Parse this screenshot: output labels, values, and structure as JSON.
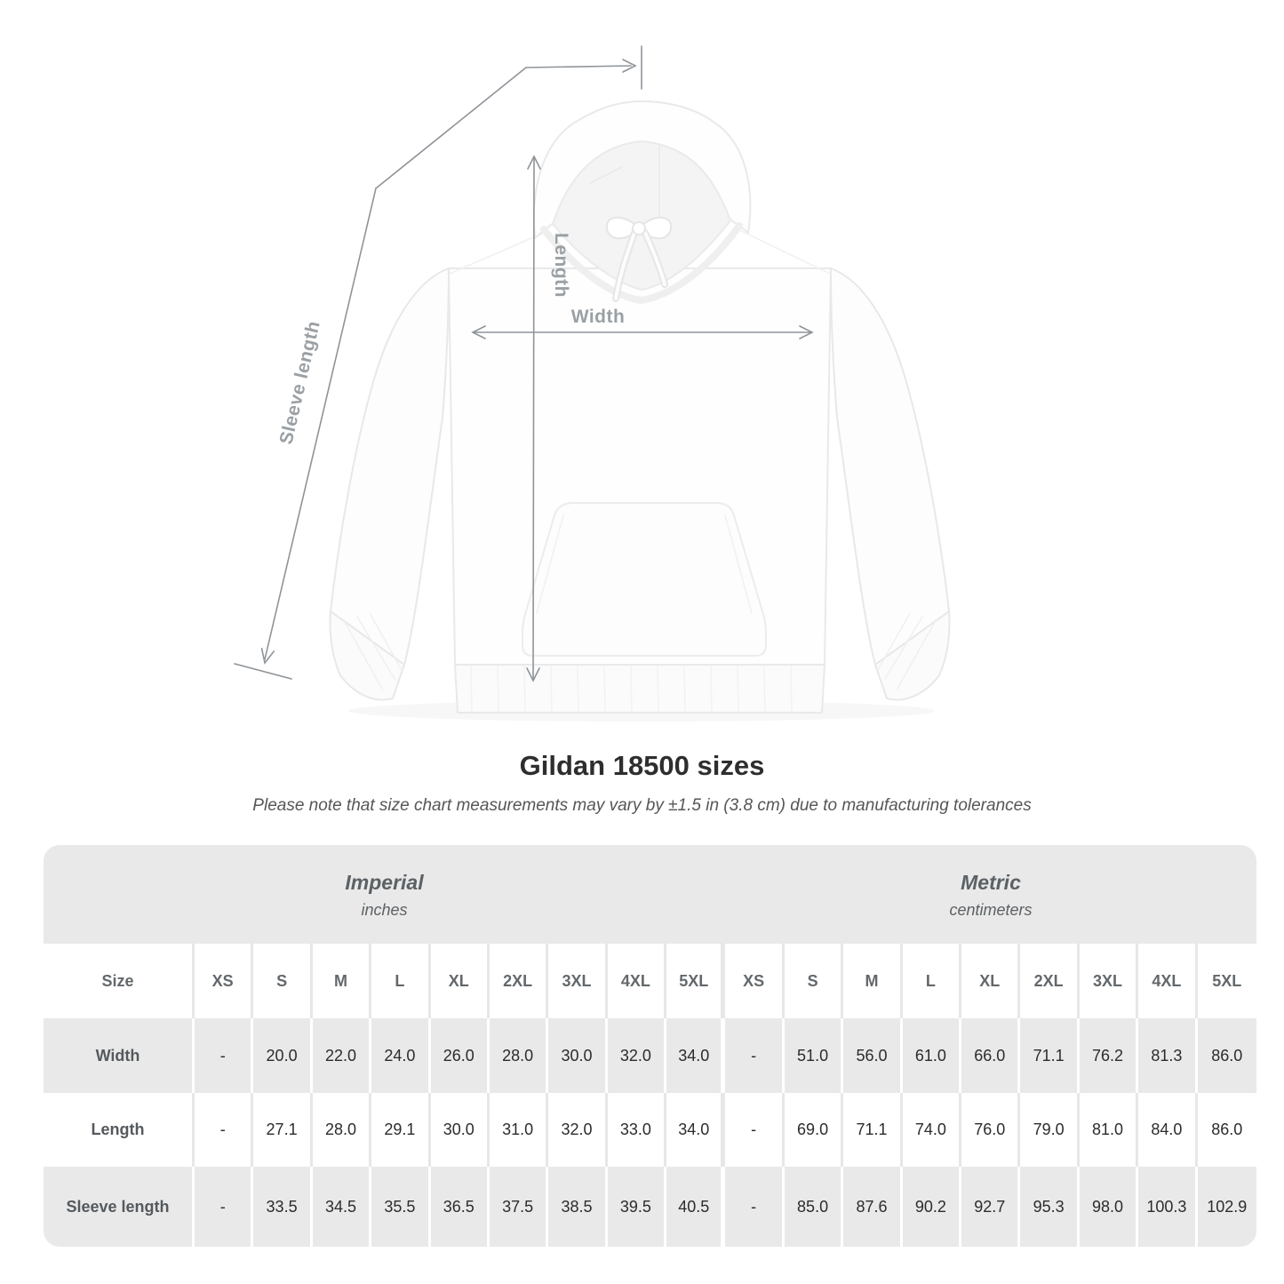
{
  "diagram": {
    "sleeve_label": "Sleeve length",
    "length_label": "Length",
    "width_label": "Width"
  },
  "title": "Gildan 18500 sizes",
  "subtitle": "Please note that size chart measurements may vary by ±1.5 in (3.8 cm) due to manufacturing tolerances",
  "colors": {
    "band_gray": "#e9e9e9",
    "dimension_line": "#8f9499",
    "dimension_label": "#9aa0a4",
    "value_text": "#2c2c2c"
  },
  "chart_data": {
    "type": "table",
    "title": "Gildan 18500 sizes",
    "corner_label": "Size",
    "groups": [
      {
        "label": "Imperial",
        "unit": "inches",
        "sizes": [
          "XS",
          "S",
          "M",
          "L",
          "XL",
          "2XL",
          "3XL",
          "4XL",
          "5XL"
        ]
      },
      {
        "label": "Metric",
        "unit": "centimeters",
        "sizes": [
          "XS",
          "S",
          "M",
          "L",
          "XL",
          "2XL",
          "3XL",
          "4XL",
          "5XL"
        ]
      }
    ],
    "rows": [
      {
        "label": "Width",
        "imperial": [
          "-",
          "20.0",
          "22.0",
          "24.0",
          "26.0",
          "28.0",
          "30.0",
          "32.0",
          "34.0"
        ],
        "metric": [
          "-",
          "51.0",
          "56.0",
          "61.0",
          "66.0",
          "71.1",
          "76.2",
          "81.3",
          "86.0"
        ]
      },
      {
        "label": "Length",
        "imperial": [
          "-",
          "27.1",
          "28.0",
          "29.1",
          "30.0",
          "31.0",
          "32.0",
          "33.0",
          "34.0"
        ],
        "metric": [
          "-",
          "69.0",
          "71.1",
          "74.0",
          "76.0",
          "79.0",
          "81.0",
          "84.0",
          "86.0"
        ]
      },
      {
        "label": "Sleeve length",
        "imperial": [
          "-",
          "33.5",
          "34.5",
          "35.5",
          "36.5",
          "37.5",
          "38.5",
          "39.5",
          "40.5"
        ],
        "metric": [
          "-",
          "85.0",
          "87.6",
          "90.2",
          "92.7",
          "95.3",
          "98.0",
          "100.3",
          "102.9"
        ]
      }
    ]
  }
}
